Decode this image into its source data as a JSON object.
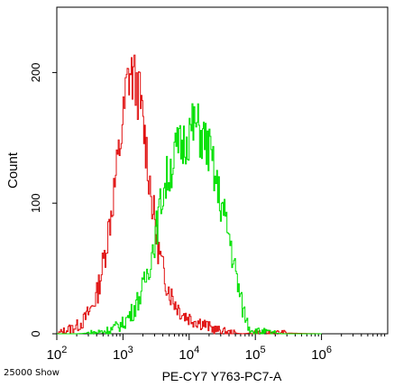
{
  "chart_data": {
    "type": "line",
    "xlabel": "PE-CY7 Y763-PC7-A",
    "ylabel": "Count",
    "x_scale": "log",
    "xlim": [
      100,
      10000000
    ],
    "ylim": [
      0,
      250
    ],
    "x_ticks": [
      {
        "value": 100,
        "base": "10",
        "exp": "2"
      },
      {
        "value": 1000,
        "base": "10",
        "exp": "3"
      },
      {
        "value": 10000,
        "base": "10",
        "exp": "4"
      },
      {
        "value": 100000,
        "base": "10",
        "exp": "5"
      },
      {
        "value": 1000000,
        "base": "10",
        "exp": "6"
      }
    ],
    "y_ticks": [
      0,
      100,
      200
    ],
    "grid": false,
    "series": [
      {
        "color": "#e01010",
        "x": [
          100,
          126,
          158,
          200,
          251,
          316,
          398,
          501,
          631,
          794,
          1000,
          1122,
          1259,
          1413,
          1585,
          1778,
          1995,
          2239,
          2512,
          2818,
          3162,
          3548,
          3981,
          4467,
          5012,
          6310,
          7943,
          10000,
          12589,
          15849,
          19953,
          25119,
          31623,
          39811,
          50119,
          63096,
          100000,
          1000000
        ],
        "values": [
          0,
          2,
          4,
          6,
          10,
          18,
          30,
          55,
          88,
          125,
          165,
          190,
          200,
          195,
          190,
          180,
          160,
          140,
          115,
          95,
          75,
          60,
          48,
          40,
          32,
          22,
          15,
          12,
          10,
          8,
          5,
          3,
          2,
          1,
          0.5,
          0,
          1,
          0
        ]
      },
      {
        "color": "#00e000",
        "x": [
          100,
          200,
          398,
          631,
          1000,
          1413,
          1995,
          2512,
          3162,
          3981,
          5012,
          6310,
          7943,
          10000,
          12589,
          15849,
          19953,
          25119,
          31623,
          39811,
          50119,
          63096,
          79433,
          100000,
          158489,
          251189,
          1000000
        ],
        "values": [
          0,
          0,
          1,
          3,
          8,
          18,
          35,
          55,
          80,
          110,
          125,
          140,
          145,
          155,
          160,
          150,
          140,
          115,
          95,
          75,
          45,
          20,
          5,
          2,
          1,
          0,
          0
        ]
      }
    ]
  },
  "footer": {
    "event_count": "25000 Show"
  }
}
